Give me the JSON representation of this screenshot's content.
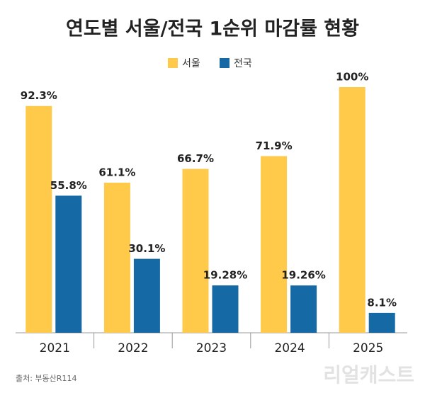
{
  "chart_data": {
    "type": "bar",
    "title": "연도별 서울/전국 1순위 마감률 현황",
    "categories": [
      "2021",
      "2022",
      "2023",
      "2024",
      "2025"
    ],
    "series": [
      {
        "name": "서울",
        "color": "#FFC94A",
        "values": [
          92.3,
          61.1,
          66.7,
          71.9,
          100
        ],
        "value_labels": [
          "92.3%",
          "61.1%",
          "66.7%",
          "71.9%",
          "100%"
        ]
      },
      {
        "name": "전국",
        "color": "#1569A5",
        "values": [
          55.8,
          30.1,
          19.28,
          19.26,
          8.1
        ],
        "value_labels": [
          "55.8%",
          "30.1%",
          "19.28%",
          "19.26%",
          "8.1%"
        ]
      }
    ],
    "ylim": [
      0,
      100
    ],
    "source": "출처: 부동산R114",
    "watermark": "리얼캐스트"
  }
}
